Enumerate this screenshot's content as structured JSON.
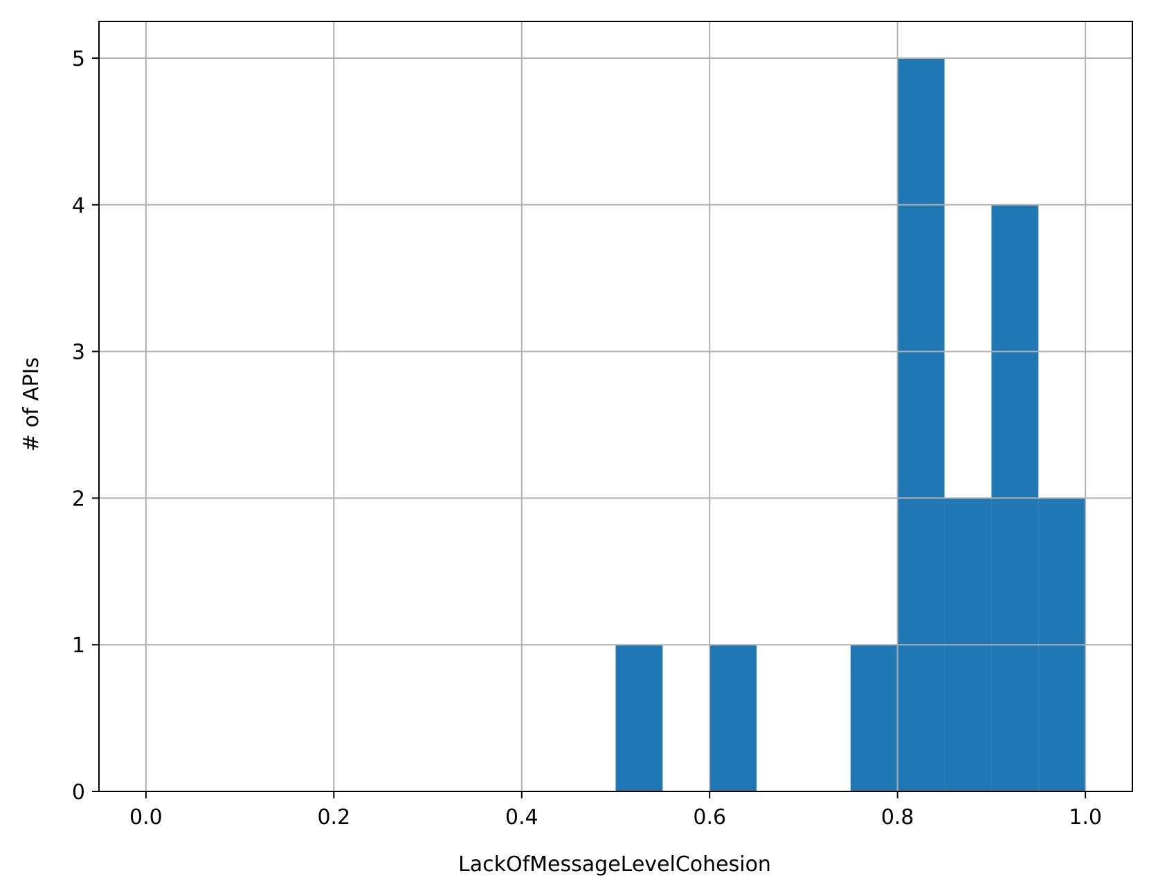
{
  "chart_data": {
    "type": "bar",
    "title": "",
    "xlabel": "LackOfMessageLevelCohesion",
    "ylabel": "# of APIs",
    "xlim": [
      -0.05,
      1.05
    ],
    "ylim": [
      0,
      5.25
    ],
    "x_ticks": [
      0.0,
      0.2,
      0.4,
      0.6,
      0.8,
      1.0
    ],
    "x_tick_labels": [
      "0.0",
      "0.2",
      "0.4",
      "0.6",
      "0.8",
      "1.0"
    ],
    "y_ticks": [
      0,
      1,
      2,
      3,
      4,
      5
    ],
    "y_tick_labels": [
      "0",
      "1",
      "2",
      "3",
      "4",
      "5"
    ],
    "grid": true,
    "bar_color": "#1f77b4",
    "grid_color": "#b0b0b0",
    "bins": [
      {
        "x0": 0.5,
        "x1": 0.55,
        "count": 1
      },
      {
        "x0": 0.6,
        "x1": 0.65,
        "count": 1
      },
      {
        "x0": 0.75,
        "x1": 0.8,
        "count": 1
      },
      {
        "x0": 0.8,
        "x1": 0.85,
        "count": 5
      },
      {
        "x0": 0.85,
        "x1": 0.9,
        "count": 2
      },
      {
        "x0": 0.9,
        "x1": 0.95,
        "count": 4
      },
      {
        "x0": 0.95,
        "x1": 1.0,
        "count": 2
      }
    ]
  }
}
